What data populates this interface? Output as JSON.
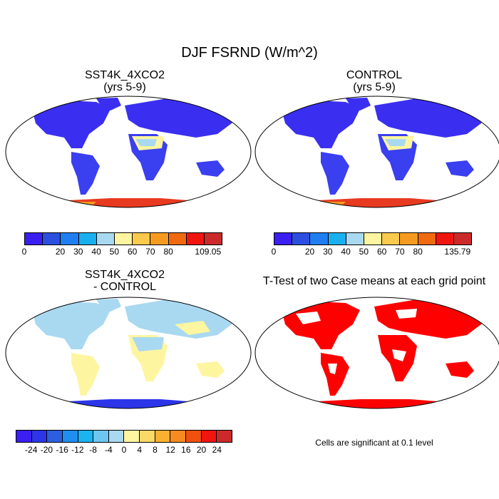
{
  "figure": {
    "title": "DJF FSRND (W/m^2)"
  },
  "panels": {
    "top_left": {
      "title_line1": "SST4K_4XCO2",
      "title_line2": "(yrs 5-9)"
    },
    "top_right": {
      "title_line1": "CONTROL",
      "title_line2": "(yrs 5-9)"
    },
    "bottom_left": {
      "title_line1": "SST4K_4XCO2",
      "title_line2": "- CONTROL"
    },
    "bottom_right": {
      "title_line1": "T-Test of two Case means at each grid point"
    }
  },
  "colorbars": {
    "top_left": {
      "labels": [
        "0",
        "20",
        "30",
        "40",
        "50",
        "60",
        "70",
        "80",
        "109.05"
      ],
      "colors": [
        "#3a1ff0",
        "#2c4fe0",
        "#1f7ef0",
        "#1ab0f0",
        "#a9d9f1",
        "#fef5a0",
        "#fbc94c",
        "#f79b20",
        "#f06a10",
        "#f0150f",
        "#cc2a2a"
      ]
    },
    "top_right": {
      "labels": [
        "0",
        "20",
        "30",
        "40",
        "50",
        "60",
        "70",
        "80",
        "135.79"
      ],
      "colors": [
        "#3a1ff0",
        "#2c4fe0",
        "#1f7ef0",
        "#1ab0f0",
        "#a9d9f1",
        "#fef5a0",
        "#fbc94c",
        "#f79b20",
        "#f06a10",
        "#f0150f",
        "#cc2a2a"
      ]
    },
    "bottom_left": {
      "labels": [
        "-24",
        "-20",
        "-16",
        "-12",
        "-8",
        "-4",
        "0",
        "4",
        "8",
        "12",
        "16",
        "20",
        "24"
      ],
      "colors": [
        "#3a1ff0",
        "#2c36e8",
        "#2c5fe0",
        "#1f8ef0",
        "#1ab4f0",
        "#6ec6f0",
        "#a9d9f1",
        "#fef5a0",
        "#fbd966",
        "#fbb030",
        "#f78a20",
        "#f05010",
        "#f0150f",
        "#cc2a2a"
      ]
    }
  },
  "significance_note": "Cells are significant at 0.1 level",
  "map_colors": {
    "land_lowvalue": "#3a2ff0",
    "antarctica_high": "#e83a20",
    "diff_land": "#a9d9f1",
    "diff_positive": "#fef5a0",
    "diff_antarctica": "#2c36e8",
    "significance": "#ff0000"
  }
}
